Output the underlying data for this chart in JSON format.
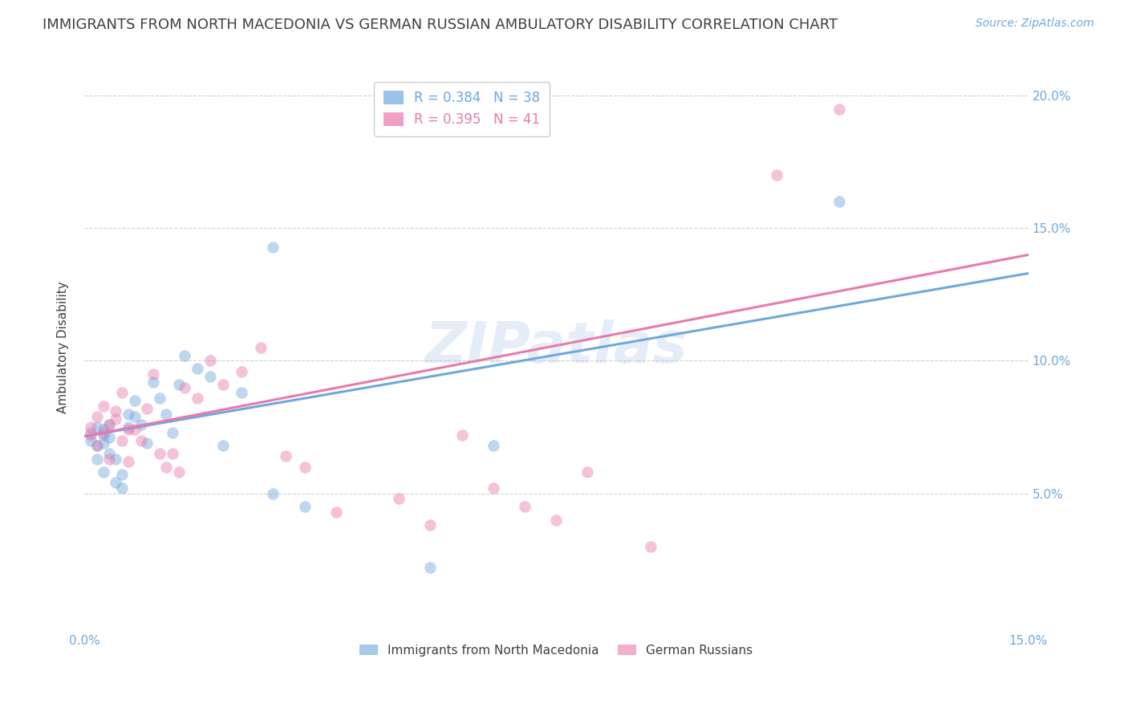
{
  "title": "IMMIGRANTS FROM NORTH MACEDONIA VS GERMAN RUSSIAN AMBULATORY DISABILITY CORRELATION CHART",
  "source": "Source: ZipAtlas.com",
  "ylabel": "Ambulatory Disability",
  "xlim": [
    0.0,
    0.15
  ],
  "ylim": [
    0.0,
    0.21
  ],
  "xticks": [
    0.0,
    0.05,
    0.1,
    0.15
  ],
  "xticklabels": [
    "0.0%",
    "",
    "",
    "15.0%"
  ],
  "yticks": [
    0.0,
    0.05,
    0.1,
    0.15,
    0.2
  ],
  "yticklabels_right": [
    "",
    "5.0%",
    "10.0%",
    "15.0%",
    "20.0%"
  ],
  "blue_R": 0.384,
  "blue_N": 38,
  "pink_R": 0.395,
  "pink_N": 41,
  "blue_color": "#6fa8dc",
  "pink_color": "#e87aab",
  "legend_label_blue": "Immigrants from North Macedonia",
  "legend_label_pink": "German Russians",
  "watermark": "ZIPatlas",
  "blue_scatter_x": [
    0.001,
    0.001,
    0.002,
    0.002,
    0.002,
    0.003,
    0.003,
    0.003,
    0.003,
    0.004,
    0.004,
    0.004,
    0.005,
    0.005,
    0.006,
    0.006,
    0.007,
    0.007,
    0.008,
    0.008,
    0.009,
    0.01,
    0.011,
    0.012,
    0.013,
    0.014,
    0.015,
    0.016,
    0.018,
    0.02,
    0.022,
    0.025,
    0.03,
    0.035,
    0.055,
    0.065,
    0.12,
    0.03
  ],
  "blue_scatter_y": [
    0.073,
    0.07,
    0.075,
    0.068,
    0.063,
    0.072,
    0.074,
    0.069,
    0.058,
    0.076,
    0.071,
    0.065,
    0.063,
    0.054,
    0.057,
    0.052,
    0.075,
    0.08,
    0.085,
    0.079,
    0.076,
    0.069,
    0.092,
    0.086,
    0.08,
    0.073,
    0.091,
    0.102,
    0.097,
    0.094,
    0.068,
    0.088,
    0.05,
    0.045,
    0.022,
    0.068,
    0.16,
    0.143
  ],
  "pink_scatter_x": [
    0.001,
    0.001,
    0.002,
    0.002,
    0.003,
    0.003,
    0.004,
    0.004,
    0.005,
    0.005,
    0.006,
    0.006,
    0.007,
    0.007,
    0.008,
    0.009,
    0.01,
    0.011,
    0.012,
    0.013,
    0.014,
    0.015,
    0.016,
    0.018,
    0.02,
    0.022,
    0.025,
    0.028,
    0.032,
    0.035,
    0.04,
    0.05,
    0.055,
    0.06,
    0.065,
    0.07,
    0.075,
    0.08,
    0.09,
    0.11,
    0.12
  ],
  "pink_scatter_y": [
    0.075,
    0.072,
    0.079,
    0.068,
    0.083,
    0.073,
    0.076,
    0.063,
    0.081,
    0.078,
    0.07,
    0.088,
    0.074,
    0.062,
    0.074,
    0.07,
    0.082,
    0.095,
    0.065,
    0.06,
    0.065,
    0.058,
    0.09,
    0.086,
    0.1,
    0.091,
    0.096,
    0.105,
    0.064,
    0.06,
    0.043,
    0.048,
    0.038,
    0.072,
    0.052,
    0.045,
    0.04,
    0.058,
    0.03,
    0.17,
    0.195
  ],
  "background_color": "#ffffff",
  "grid_color": "#d0d0d0",
  "title_color": "#404040",
  "axis_color": "#6fa8dc",
  "title_fontsize": 13,
  "source_fontsize": 10,
  "marker_size": 110,
  "marker_alpha": 0.45,
  "blue_line_start_x": 0.0,
  "blue_line_start_y": 0.0715,
  "blue_line_end_x": 0.15,
  "blue_line_end_y": 0.133,
  "pink_line_start_x": 0.0,
  "pink_line_start_y": 0.0715,
  "pink_line_end_x": 0.15,
  "pink_line_end_y": 0.14
}
